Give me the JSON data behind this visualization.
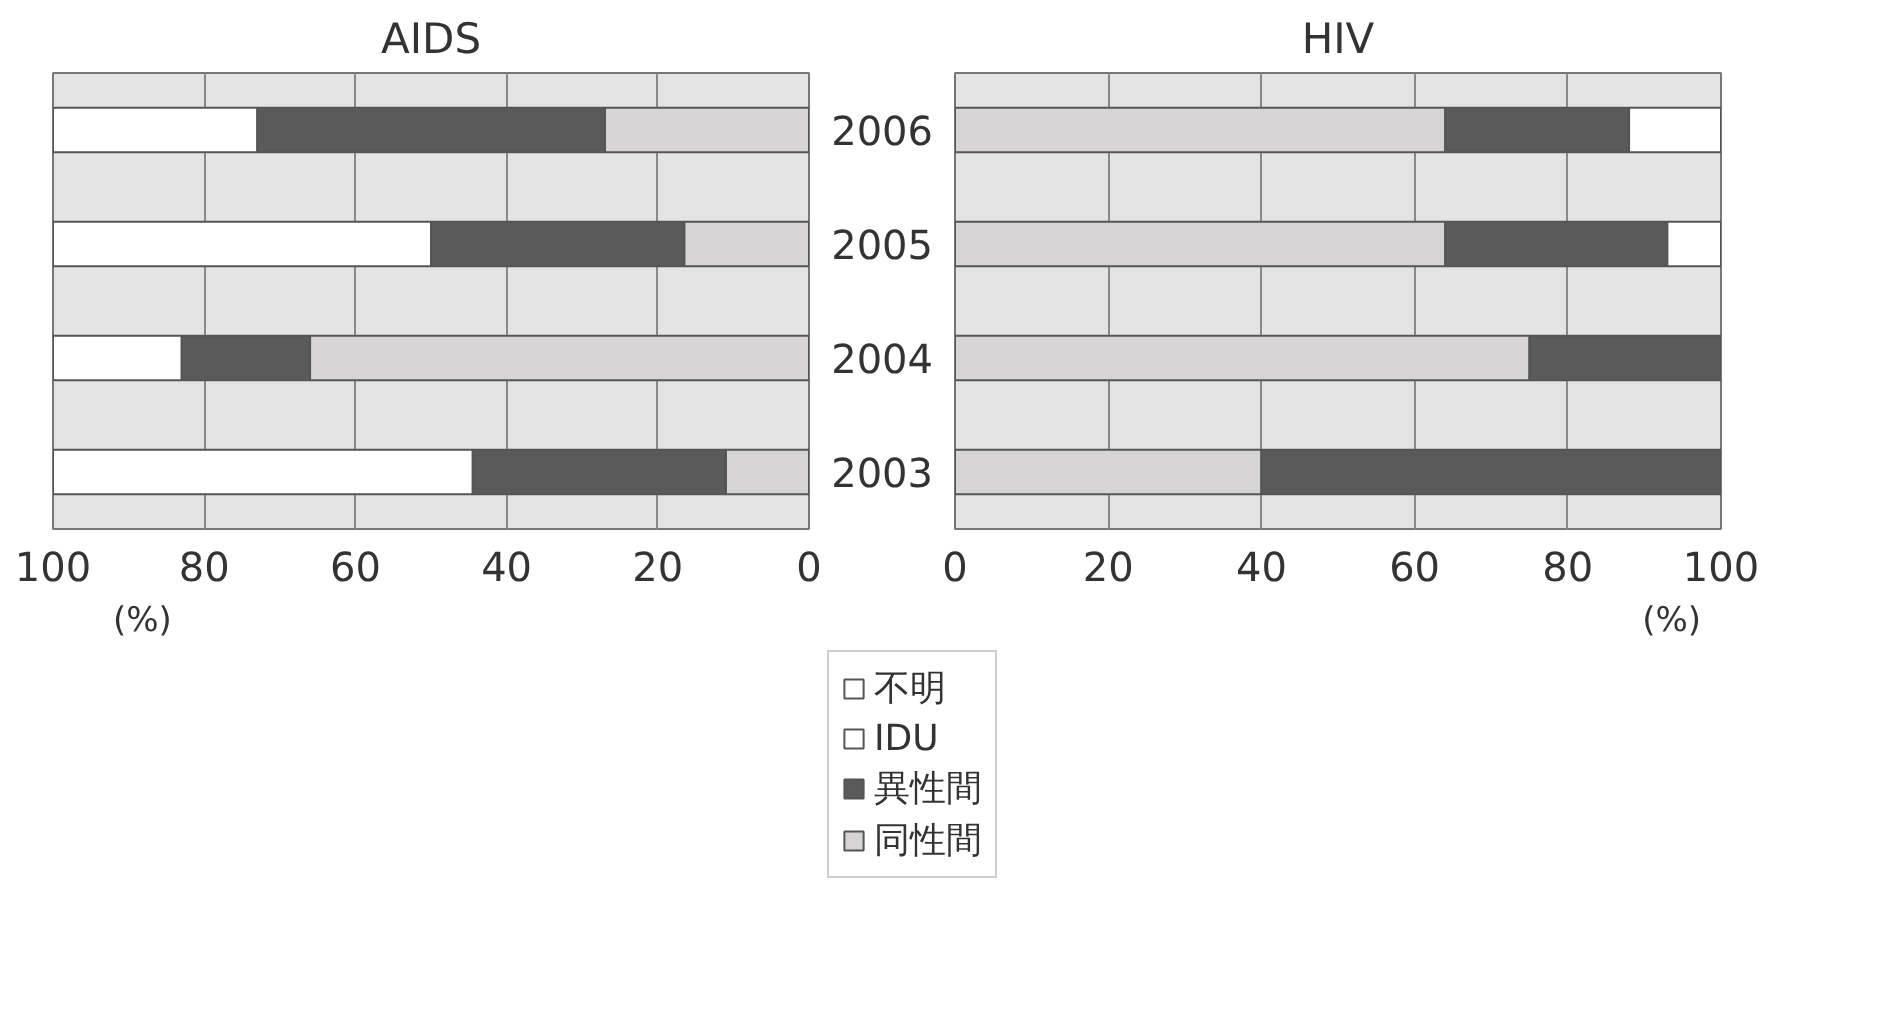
{
  "chart_data": [
    {
      "type": "bar",
      "title": "AIDS",
      "xlabel": "(%)",
      "orientation": "horizontal",
      "stacked": true,
      "categories": [
        "2006",
        "2005",
        "2004",
        "2003"
      ],
      "series": [
        {
          "color": "#d6d4d4",
          "values": [
            27,
            16.5,
            66,
            11
          ]
        },
        {
          "color": "#5a5a5a",
          "values": [
            46,
            33.5,
            17,
            33.5
          ]
        },
        {
          "color": "#ffffff",
          "values": [
            27,
            50,
            17,
            55.5
          ]
        }
      ],
      "xlim": [
        100,
        0
      ],
      "xticks": [
        100,
        80,
        60,
        40,
        20,
        0
      ],
      "grid": "x",
      "tick_labels": "x"
    },
    {
      "type": "bar",
      "title": "HIV",
      "xlabel": "(%)",
      "orientation": "horizontal",
      "stacked": true,
      "categories": [
        "2006",
        "2005",
        "2004",
        "2003"
      ],
      "series": [
        {
          "name": "同性間",
          "color": "#d6d4d4",
          "values": [
            64,
            64,
            75,
            40
          ]
        },
        {
          "name": "異性間",
          "color": "#5a5a5a",
          "values": [
            24,
            29,
            25,
            60
          ]
        },
        {
          "name": "IDU",
          "color": "#ffffff",
          "values": [
            null,
            null,
            null,
            null
          ]
        },
        {
          "name": "不明",
          "color": "#ffffff",
          "values": [
            12,
            7,
            null,
            null
          ]
        }
      ],
      "xlim": [
        0,
        100
      ],
      "xticks": [
        0,
        20,
        40,
        60,
        80,
        100
      ],
      "grid": "x",
      "legend": "bottom"
    }
  ]
}
